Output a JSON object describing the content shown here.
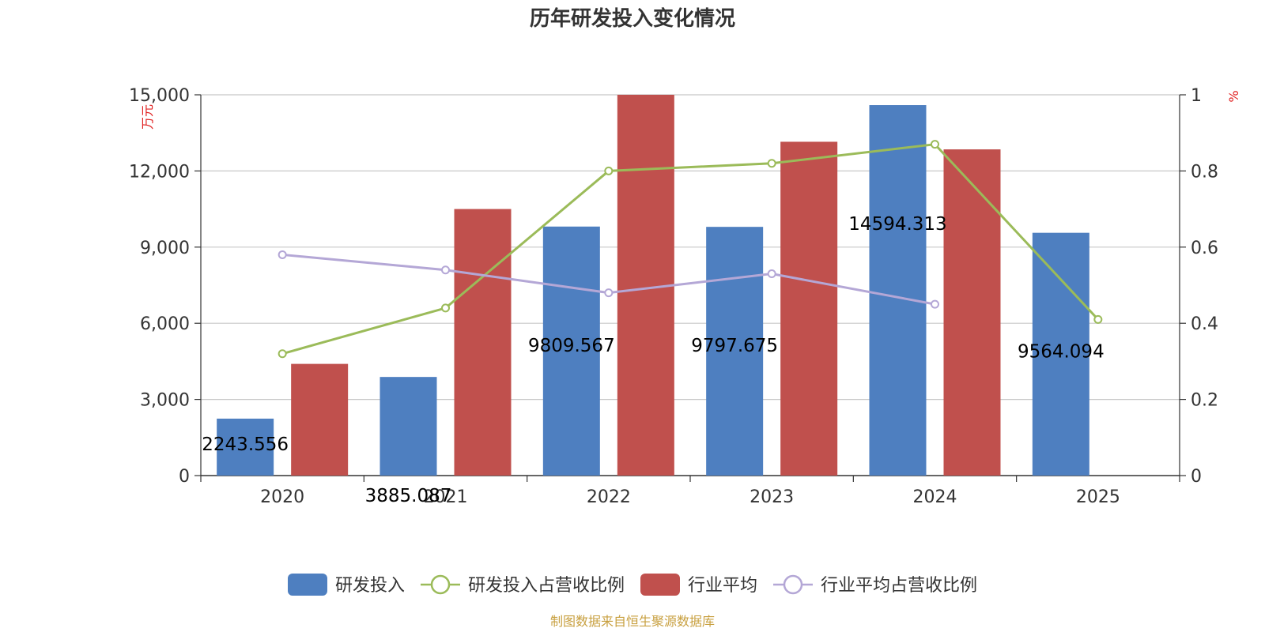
{
  "chart_data": {
    "type": "bar",
    "title": "历年研发投入变化情况",
    "categories": [
      "2020",
      "2021",
      "2022",
      "2023",
      "2024",
      "2025"
    ],
    "y_left": {
      "unit": "万元",
      "range": [
        0,
        15000
      ],
      "ticks": [
        "0",
        "3,000",
        "6,000",
        "9,000",
        "12,000",
        "15,000"
      ]
    },
    "y_right": {
      "unit": "%",
      "range": [
        0,
        1
      ],
      "ticks": [
        "0",
        "0.2",
        "0.4",
        "0.6",
        "0.8",
        "1"
      ]
    },
    "series": [
      {
        "name": "研发投入",
        "kind": "bar",
        "axis": "left",
        "color": "#4e7fc0",
        "values": [
          2243.556,
          3885.087,
          9809.567,
          9797.675,
          14594.313,
          9564.094
        ],
        "labels": [
          "2243.556",
          "3885.087",
          "9809.567",
          "9797.675",
          "14594.313",
          "9564.094"
        ]
      },
      {
        "name": "研发投入占营收比例",
        "kind": "line",
        "axis": "right",
        "color": "#9bbb59",
        "values": [
          0.32,
          0.44,
          0.8,
          0.82,
          0.87,
          0.41
        ]
      },
      {
        "name": "行业平均",
        "kind": "bar",
        "axis": "left",
        "color": "#c0504d",
        "values": [
          4400,
          10500,
          15000,
          13150,
          12850,
          null
        ]
      },
      {
        "name": "行业平均占营收比例",
        "kind": "line",
        "axis": "right",
        "color": "#b4a7d6",
        "values": [
          0.58,
          0.54,
          0.48,
          0.53,
          0.45,
          null
        ]
      }
    ],
    "grid": true,
    "legend_position": "bottom-center"
  },
  "source": "制图数据来自恒生聚源数据库"
}
